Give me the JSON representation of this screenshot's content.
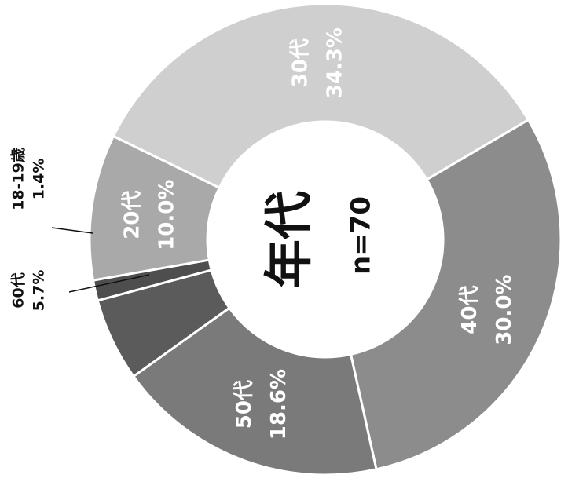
{
  "chart_data": {
    "type": "pie",
    "donut": true,
    "orientation": "rotated 90 degrees counter-clockwise",
    "center_title": "年代",
    "center_subtitle": "n=70",
    "slices": [
      {
        "label": "30代",
        "value": 34.3,
        "display": "34.3%",
        "color": "#cfcfcf"
      },
      {
        "label": "40代",
        "value": 30.0,
        "display": "30.0%",
        "color": "#8c8c8c"
      },
      {
        "label": "50代",
        "value": 18.6,
        "display": "18.6%",
        "color": "#7a7a7a"
      },
      {
        "label": "60代",
        "value": 5.7,
        "display": "5.7%",
        "color": "#5b5b5b"
      },
      {
        "label": "18-19歳",
        "value": 1.4,
        "display": "1.4%",
        "color": "#4e4e4e"
      },
      {
        "label": "20代",
        "value": 10.0,
        "display": "10.0%",
        "color": "#a9a9a9"
      }
    ]
  }
}
